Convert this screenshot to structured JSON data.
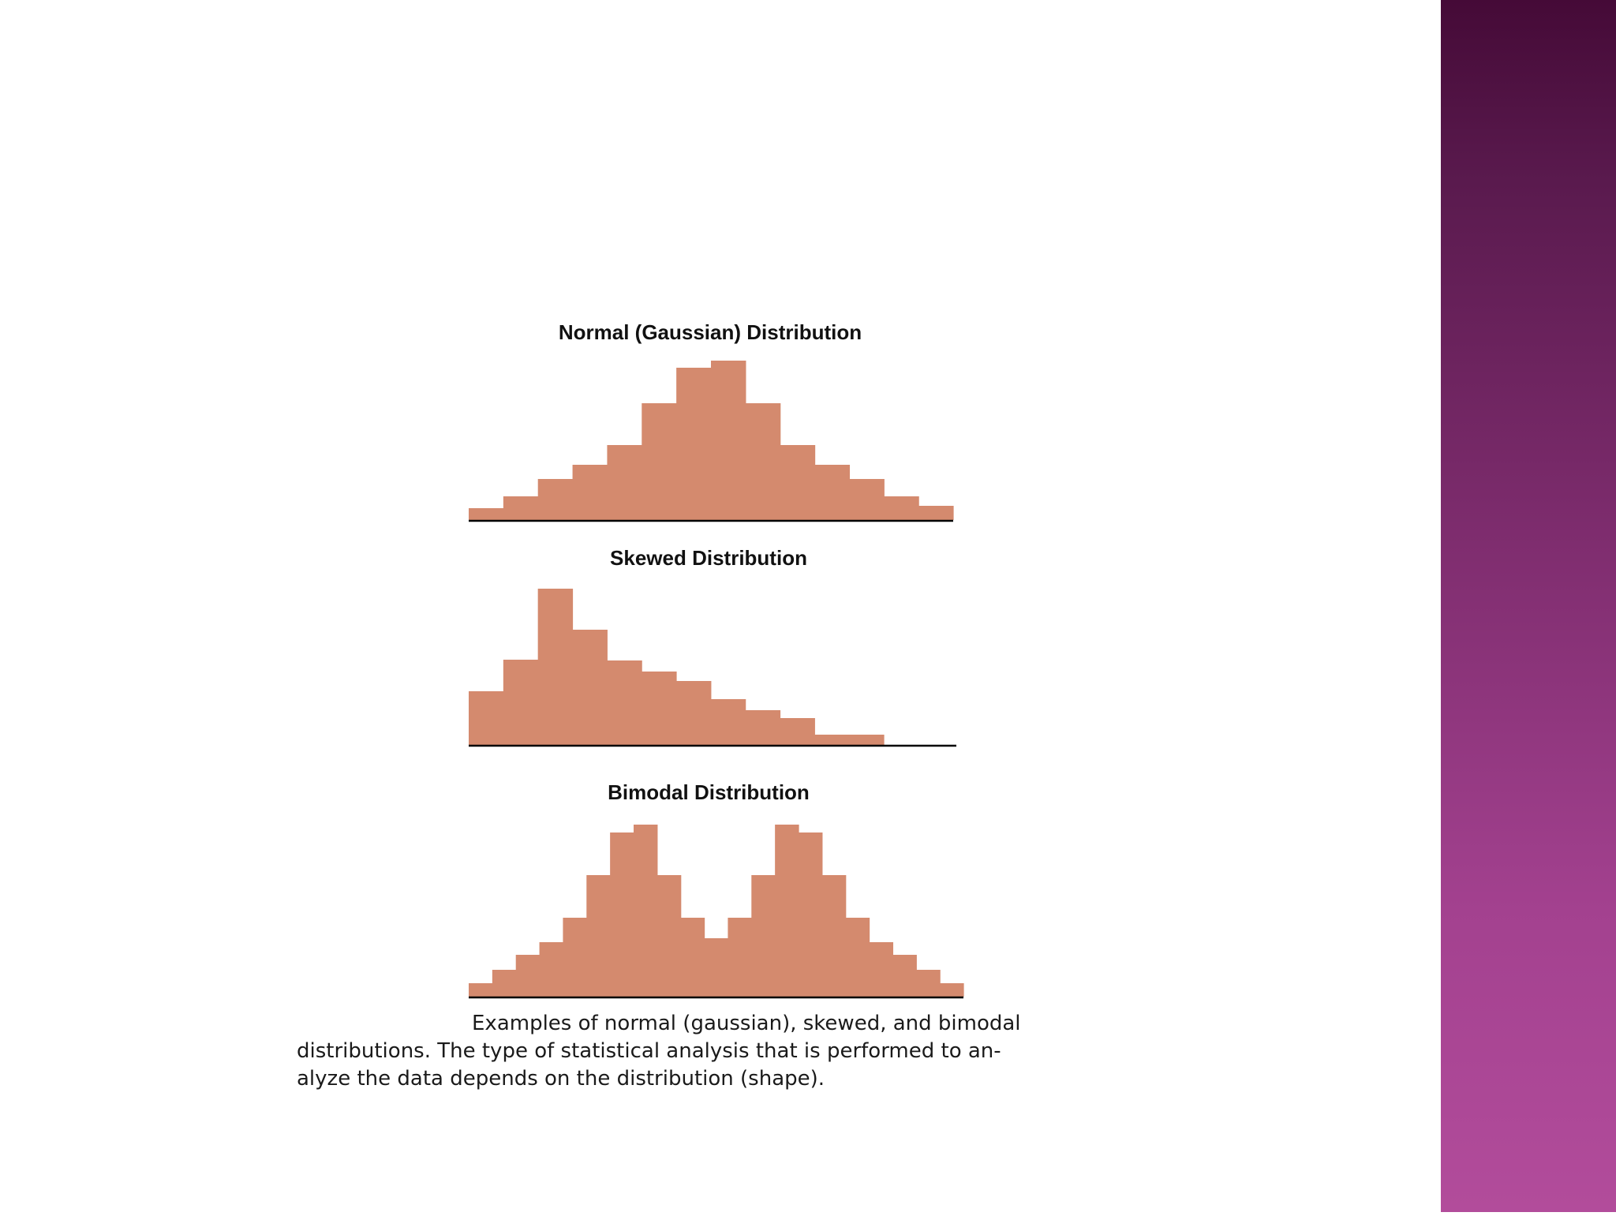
{
  "chart_data": [
    {
      "type": "bar",
      "title": "Normal (Gaussian) Distribution",
      "values": [
        1.5,
        3.0,
        5.2,
        7.0,
        9.5,
        14.8,
        19.3,
        20.2,
        14.8,
        9.5,
        7.0,
        5.2,
        3.0,
        1.8
      ],
      "bar_color": "#d48a6e"
    },
    {
      "type": "bar",
      "title": "Skewed Distribution",
      "values": [
        6.8,
        10.8,
        19.8,
        14.6,
        10.7,
        9.3,
        8.1,
        5.8,
        4.4,
        3.4,
        1.3,
        1.3
      ],
      "bar_color": "#d48a6e"
    },
    {
      "type": "bar",
      "title": "Bimodal Distribution",
      "values": [
        1.7,
        3.4,
        5.3,
        6.9,
        10.0,
        15.4,
        20.8,
        21.8,
        15.4,
        10.0,
        7.4,
        10.0,
        15.4,
        21.8,
        20.8,
        15.4,
        10.0,
        6.9,
        5.3,
        3.4,
        1.7
      ],
      "bar_color": "#d48a6e"
    }
  ],
  "caption": {
    "line1": "Examples of normal (gaussian), skewed, and bimodal",
    "line2": "distributions. The type of statistical analysis that is performed to an-",
    "line3": "alyze the data depends on the distribution (shape)."
  },
  "colors": {
    "bar": "#d48a6e",
    "axis": "#000000",
    "side_band_top": "#450a37",
    "side_band_bottom": "#b24c9b"
  }
}
